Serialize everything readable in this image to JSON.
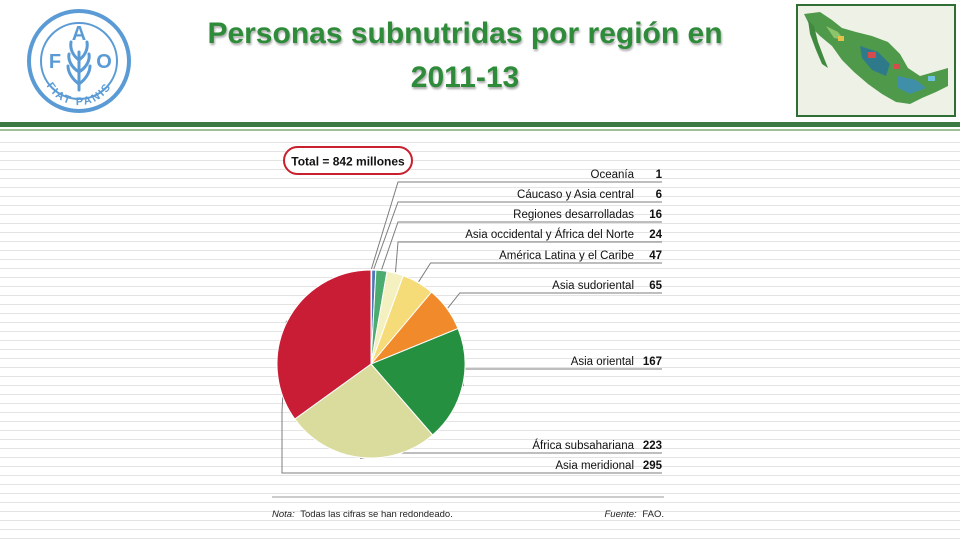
{
  "header": {
    "title_line1": "Personas subnutridas por región en",
    "title_line2": "2011-13"
  },
  "logo": {
    "center_letters": [
      "F",
      "A",
      "O"
    ],
    "motto": "FIAT PANIS"
  },
  "colors": {
    "title_green": "#2e8b3a",
    "rule_green": "#3c7a43",
    "total_oval": "#c8202f"
  },
  "chart_data": {
    "type": "pie",
    "total_label": "Total = 842 millones",
    "categories": [
      "Oceanía",
      "Cáucaso y Asia central",
      "Regiones desarrolladas",
      "Asia occidental y África del Norte",
      "América Latina y el Caribe",
      "Asia sudoriental",
      "Asia oriental",
      "África subsahariana",
      "Asia meridional"
    ],
    "values": [
      1,
      6,
      16,
      24,
      47,
      65,
      167,
      223,
      295
    ],
    "colors": [
      "#9aa0a8",
      "#4f78b6",
      "#4cab6f",
      "#f4f0c0",
      "#f6dc78",
      "#f08a2a",
      "#25903f",
      "#d9dc9c",
      "#c81d35"
    ],
    "unit": "millones",
    "note_label": "Nota:",
    "note_text": "Todas las cifras se han redondeado.",
    "source_label": "Fuente:",
    "source_text": "FAO."
  }
}
